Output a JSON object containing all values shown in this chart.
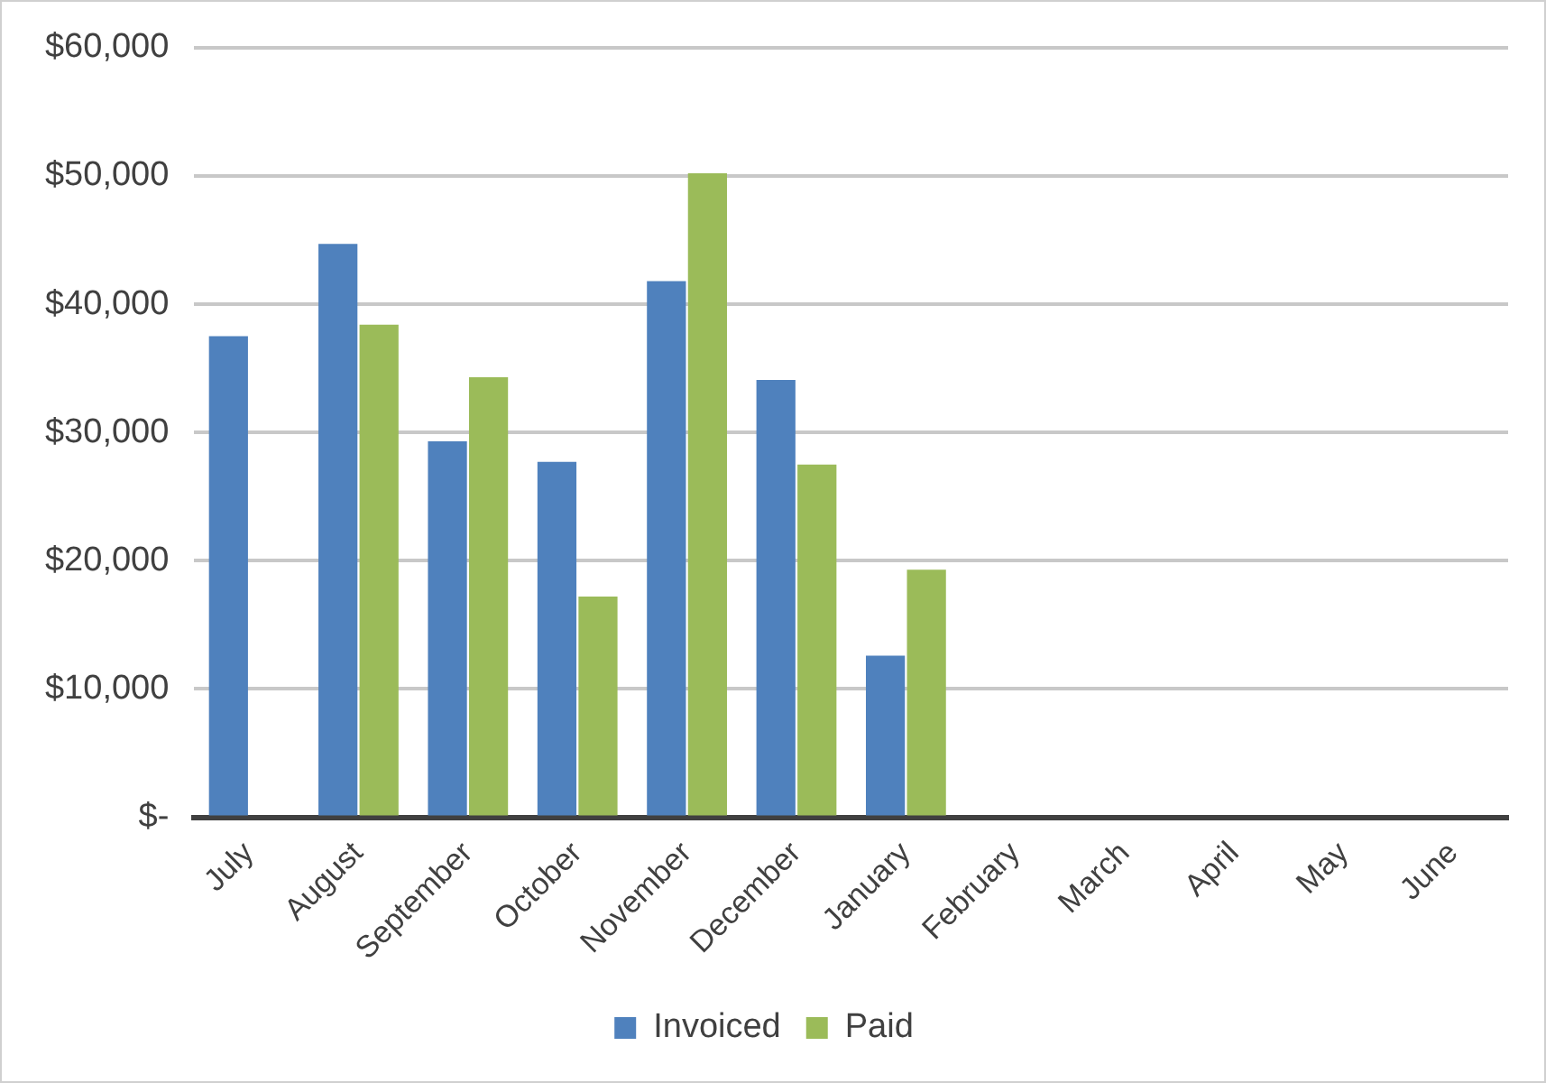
{
  "chart_data": {
    "type": "bar",
    "categories": [
      "July",
      "August",
      "September",
      "October",
      "November",
      "December",
      "January",
      "February",
      "March",
      "April",
      "May",
      "June"
    ],
    "series": [
      {
        "name": "Invoiced",
        "color": "#4f81bd",
        "values": [
          37500,
          44700,
          29300,
          27700,
          41800,
          34100,
          12600,
          null,
          null,
          null,
          null,
          null
        ]
      },
      {
        "name": "Paid",
        "color": "#9bbb59",
        "values": [
          null,
          38400,
          34300,
          17200,
          50200,
          27500,
          19300,
          null,
          null,
          null,
          null,
          null
        ]
      }
    ],
    "ylim": [
      0,
      60000
    ],
    "yticks": [
      {
        "value": 0,
        "label": "$-"
      },
      {
        "value": 10000,
        "label": "$10,000"
      },
      {
        "value": 20000,
        "label": "$20,000"
      },
      {
        "value": 30000,
        "label": "$30,000"
      },
      {
        "value": 40000,
        "label": "$40,000"
      },
      {
        "value": 50000,
        "label": "$50,000"
      },
      {
        "value": 60000,
        "label": "$60,000"
      }
    ],
    "grid": "y",
    "legend": "bottom"
  }
}
